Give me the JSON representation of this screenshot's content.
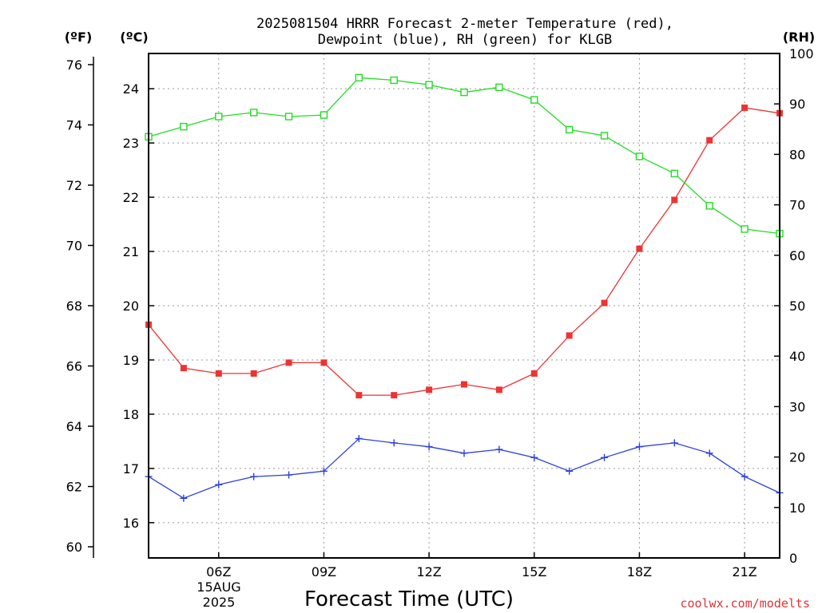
{
  "header": {
    "title_line1": "2025081504 HRRR Forecast 2-meter Temperature (red),",
    "title_line2": "Dewpoint (blue), RH (green) for KLGB",
    "unit_f": "(ºF)",
    "unit_c": "(ºC)",
    "unit_rh": "(RH)",
    "xlabel": "Forecast Time (UTC)",
    "date_line1": "15AUG",
    "date_line2": "2025",
    "credit": "coolwx.com/modelts"
  },
  "chart_data": {
    "type": "line",
    "x": [
      4,
      5,
      6,
      7,
      8,
      9,
      10,
      11,
      12,
      13,
      14,
      15,
      16,
      17,
      18,
      19,
      20,
      21,
      22
    ],
    "x_unit": "UTC hour (15 AUG 2025)",
    "xlim": [
      4,
      22
    ],
    "x_ticks": [
      {
        "value": 6,
        "label": "06Z"
      },
      {
        "value": 9,
        "label": "09Z"
      },
      {
        "value": 12,
        "label": "12Z"
      },
      {
        "value": 15,
        "label": "15Z"
      },
      {
        "value": 18,
        "label": "18Z"
      },
      {
        "value": 21,
        "label": "21Z"
      }
    ],
    "grid": true,
    "axes": {
      "celsius": {
        "ylim": [
          15.35,
          24.65
        ],
        "ticks": [
          16,
          17,
          18,
          19,
          20,
          21,
          22,
          23,
          24
        ]
      },
      "fahrenheit": {
        "ticks": [
          60,
          62,
          64,
          66,
          68,
          70,
          72,
          74,
          76
        ]
      },
      "rh": {
        "ylim": [
          0,
          100
        ],
        "ticks": [
          0,
          10,
          20,
          30,
          40,
          50,
          60,
          70,
          80,
          90,
          100
        ]
      }
    },
    "series": [
      {
        "name": "Temperature",
        "axis": "celsius",
        "color": "#ee3333",
        "marker": "filled-square",
        "values": [
          19.65,
          18.85,
          18.75,
          18.75,
          18.95,
          18.95,
          18.35,
          18.35,
          18.45,
          18.55,
          18.45,
          18.75,
          19.45,
          20.05,
          21.05,
          21.95,
          23.05,
          23.65,
          23.55
        ]
      },
      {
        "name": "Dewpoint",
        "axis": "celsius",
        "color": "#2b3fe0",
        "marker": "plus",
        "values": [
          16.85,
          16.45,
          16.7,
          16.85,
          16.88,
          16.95,
          17.55,
          17.47,
          17.4,
          17.28,
          17.35,
          17.2,
          16.95,
          17.2,
          17.4,
          17.47,
          17.28,
          16.85,
          16.55
        ]
      },
      {
        "name": "RH",
        "axis": "rh",
        "color": "#22dd22",
        "marker": "open-square",
        "values": [
          83.5,
          85.5,
          87.5,
          88.3,
          87.5,
          87.8,
          95.2,
          94.7,
          93.8,
          92.3,
          93.3,
          90.8,
          84.9,
          83.7,
          79.6,
          76.2,
          69.8,
          65.2,
          64.3
        ]
      }
    ]
  }
}
